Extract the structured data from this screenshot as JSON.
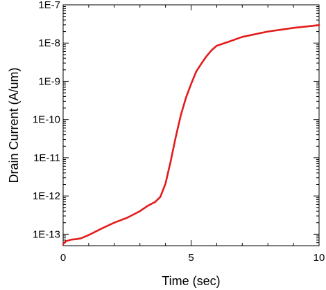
{
  "chart_data": {
    "type": "line",
    "title": "",
    "xlabel": "Time (sec)",
    "ylabel": "Drain Current (A/um)",
    "xlim": [
      0,
      10
    ],
    "ylim": [
      5e-14,
      1e-07
    ],
    "y_scale": "log",
    "grid": false,
    "x_ticks": [
      0,
      5,
      10
    ],
    "x_tick_labels": [
      "0",
      "5",
      "10"
    ],
    "y_ticks": [
      1e-13,
      1e-12,
      1e-11,
      1e-10,
      1e-09,
      1e-08,
      1e-07
    ],
    "y_tick_labels": [
      "1E-13",
      "1E-12",
      "1E-11",
      "1E-10",
      "1E-9",
      "1E-8",
      "1E-7"
    ],
    "line_color": "#e41b1b",
    "series": [
      {
        "x": [
          0,
          0.1,
          0.3,
          0.5,
          0.7,
          1.0,
          1.5,
          2.0,
          2.5,
          3.0,
          3.3,
          3.6,
          3.8,
          4.0,
          4.2,
          4.4,
          4.6,
          4.8,
          5.0,
          5.2,
          5.4,
          5.6,
          5.8,
          6.0,
          6.5,
          7.0,
          8.0,
          9.0,
          10.0
        ],
        "y": [
          5.5e-14,
          6.5e-14,
          7.2e-14,
          7.4e-14,
          7.8e-14,
          9.5e-14,
          1.4e-13,
          2e-13,
          2.7e-13,
          4e-13,
          5.5e-13,
          7e-13,
          9.5e-13,
          2.1e-12,
          8e-12,
          3.5e-11,
          1.3e-10,
          3.7e-10,
          8.5e-10,
          1.8e-09,
          2.9e-09,
          4.5e-09,
          6.5e-09,
          8.5e-09,
          1.1e-08,
          1.45e-08,
          2e-08,
          2.5e-08,
          2.95e-08
        ]
      }
    ]
  }
}
